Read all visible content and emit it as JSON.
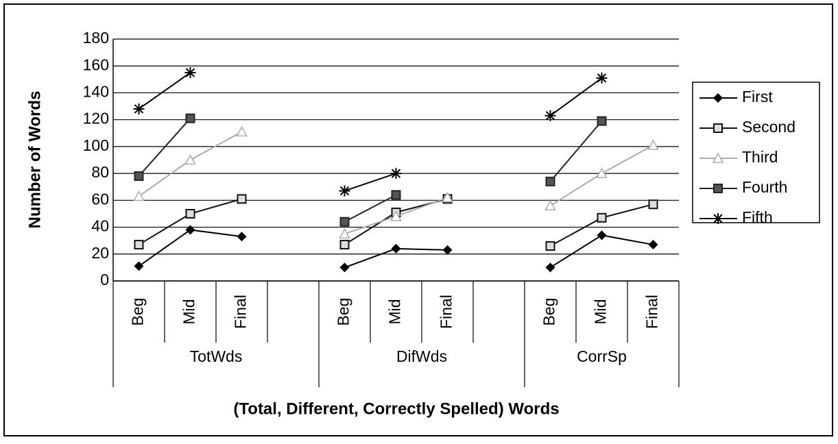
{
  "chart_data": {
    "type": "line",
    "y_label": "Number of Words",
    "x_label": "(Total,  Different, Correctly Spelled) Words",
    "categories": [
      "Beg",
      "Mid",
      "Final",
      null,
      "Beg",
      "Mid",
      "Final",
      null,
      "Beg",
      "Mid",
      "Final"
    ],
    "groups": [
      "TotWds",
      "DifWds",
      "CorrSp"
    ],
    "ylim": [
      0,
      180
    ],
    "yticks": [
      0,
      20,
      40,
      60,
      80,
      100,
      120,
      140,
      160,
      180
    ],
    "grid": true,
    "legend": "right",
    "series": [
      {
        "name": "First",
        "color": "#000000",
        "marker": "diamond",
        "values": [
          11,
          38,
          33,
          null,
          10,
          24,
          23,
          null,
          10,
          34,
          27
        ]
      },
      {
        "name": "Second",
        "color": "#111111",
        "marker": "square-open",
        "values": [
          27,
          50,
          61,
          null,
          27,
          51,
          61,
          null,
          26,
          47,
          57
        ]
      },
      {
        "name": "Third",
        "color": "#aaaaaa",
        "marker": "triangle",
        "values": [
          63,
          90,
          111,
          null,
          35,
          48,
          62,
          null,
          56,
          80,
          101
        ]
      },
      {
        "name": "Fourth",
        "color": "#222222",
        "marker": "square",
        "values": [
          78,
          121,
          null,
          null,
          44,
          64,
          null,
          null,
          74,
          119,
          null
        ]
      },
      {
        "name": "Fifth",
        "color": "#000000",
        "marker": "asterisk",
        "values": [
          128,
          155,
          null,
          null,
          67,
          80,
          null,
          null,
          123,
          151,
          null
        ]
      }
    ]
  }
}
